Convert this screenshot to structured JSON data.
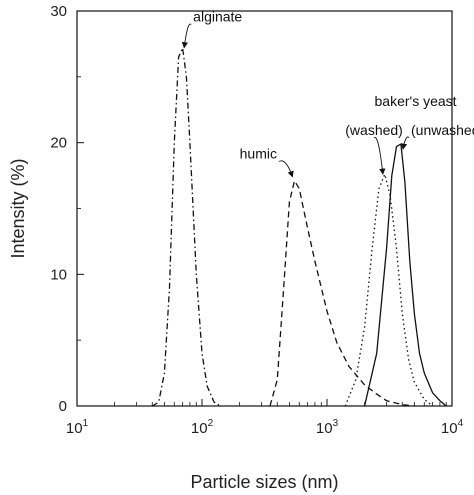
{
  "chart_data": {
    "type": "line",
    "x_scale": "log",
    "xlim": [
      10,
      10000
    ],
    "ylim": [
      0,
      30
    ],
    "xlabel": "Particle sizes (nm)",
    "ylabel": "Intensity (%)",
    "x_ticks": [
      {
        "base": "10",
        "exp": "1"
      },
      {
        "base": "10",
        "exp": "2"
      },
      {
        "base": "10",
        "exp": "3"
      },
      {
        "base": "10",
        "exp": "4"
      }
    ],
    "y_ticks": [
      "0",
      "10",
      "20",
      "30"
    ],
    "grid": false,
    "legend": "none",
    "series": [
      {
        "dash": "dashdot",
        "points": [
          [
            40,
            0
          ],
          [
            45,
            0.3
          ],
          [
            50,
            2.5
          ],
          [
            55,
            9
          ],
          [
            60,
            20
          ],
          [
            65,
            26.5
          ],
          [
            70,
            27.2
          ],
          [
            75,
            25
          ],
          [
            80,
            20
          ],
          [
            90,
            10
          ],
          [
            100,
            4
          ],
          [
            110,
            1.5
          ],
          [
            125,
            0.3
          ],
          [
            140,
            0
          ]
        ]
      },
      {
        "dash": "dash",
        "points": [
          [
            350,
            0
          ],
          [
            400,
            2
          ],
          [
            450,
            9
          ],
          [
            500,
            15.5
          ],
          [
            550,
            17.1
          ],
          [
            600,
            16.5
          ],
          [
            700,
            13.5
          ],
          [
            800,
            11
          ],
          [
            1000,
            7.2
          ],
          [
            1200,
            4.8
          ],
          [
            1500,
            3
          ],
          [
            2000,
            1.6
          ],
          [
            2500,
            0.9
          ],
          [
            3000,
            0.4
          ],
          [
            4000,
            0.1
          ],
          [
            5000,
            0
          ]
        ]
      },
      {
        "dash": "dot",
        "points": [
          [
            1400,
            0
          ],
          [
            1700,
            2
          ],
          [
            2000,
            6
          ],
          [
            2300,
            12
          ],
          [
            2600,
            16.5
          ],
          [
            2900,
            17.6
          ],
          [
            3200,
            16
          ],
          [
            3600,
            12
          ],
          [
            4000,
            7
          ],
          [
            4500,
            3.5
          ],
          [
            5000,
            1.8
          ],
          [
            6000,
            0.5
          ],
          [
            7000,
            0
          ]
        ]
      },
      {
        "dash": "solid",
        "points": [
          [
            2000,
            0
          ],
          [
            2500,
            4
          ],
          [
            3000,
            12
          ],
          [
            3300,
            17.5
          ],
          [
            3600,
            19.7
          ],
          [
            3900,
            19.9
          ],
          [
            4200,
            17
          ],
          [
            4600,
            11
          ],
          [
            5000,
            7
          ],
          [
            5500,
            4
          ],
          [
            6000,
            2.5
          ],
          [
            7000,
            1
          ],
          [
            8000,
            0.4
          ],
          [
            9000,
            0
          ]
        ]
      }
    ],
    "annotations": [
      {
        "text": "alginate",
        "tx": 85,
        "ty": 29.2,
        "ax": 72,
        "ay": 27.2
      },
      {
        "text": "humic",
        "tx": 200,
        "ty": 18.8,
        "ax": 530,
        "ay": 17.4
      },
      {
        "text": "baker's yeast",
        "tx": 2400,
        "ty": 22.8
      },
      {
        "text": "(washed)",
        "tx": 1400,
        "ty": 20.6,
        "ax": 2800,
        "ay": 17.6
      },
      {
        "text": "(unwashed)",
        "tx": 4700,
        "ty": 20.6,
        "ax": 4050,
        "ay": 19.5
      }
    ]
  }
}
